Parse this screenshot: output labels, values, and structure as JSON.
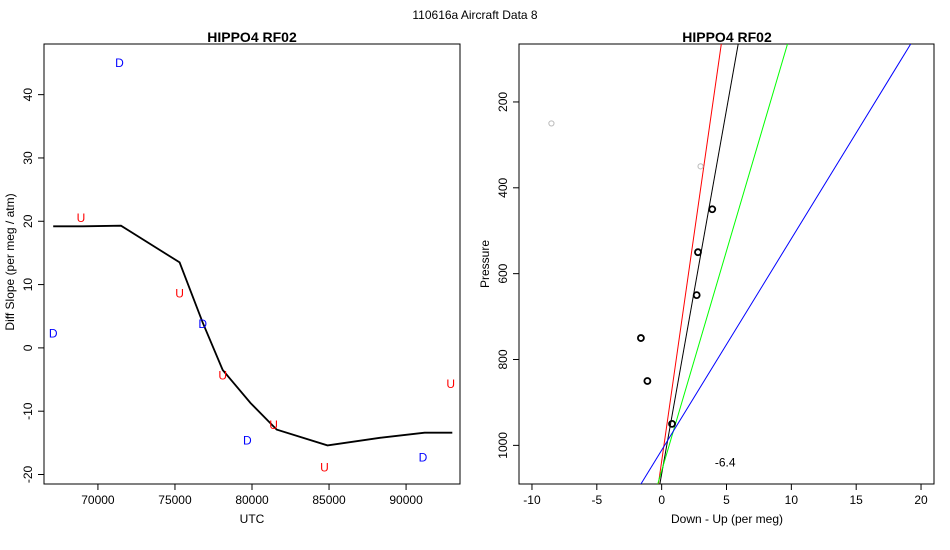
{
  "figure": {
    "suptitle": "110616a   Aircraft Data 8"
  },
  "chart_data": [
    {
      "type": "scatter",
      "title": "HIPPO4 RF02",
      "xlabel": "UTC",
      "ylabel": "Diff Slope (per meg / atm)",
      "xlim": [
        66500,
        93500
      ],
      "ylim": [
        -21.5,
        48
      ],
      "xticks": [
        70000,
        75000,
        80000,
        85000,
        90000
      ],
      "yticks": [
        -20,
        -10,
        0,
        10,
        20,
        30,
        40
      ],
      "grid": false,
      "points": [
        {
          "label": "D",
          "x": 71400,
          "y": 45,
          "color": "#0000ff"
        },
        {
          "label": "U",
          "x": 68900,
          "y": 20.5,
          "color": "#ff0000"
        },
        {
          "label": "D",
          "x": 67100,
          "y": 2.3,
          "color": "#0000ff"
        },
        {
          "label": "U",
          "x": 75300,
          "y": 8.6,
          "color": "#ff0000"
        },
        {
          "label": "D",
          "x": 76800,
          "y": 3.8,
          "color": "#0000ff"
        },
        {
          "label": "U",
          "x": 78100,
          "y": -4.4,
          "color": "#ff0000"
        },
        {
          "label": "D",
          "x": 79700,
          "y": -14.6,
          "color": "#0000ff"
        },
        {
          "label": "U",
          "x": 81400,
          "y": -12.2,
          "color": "#ff0000"
        },
        {
          "label": "U",
          "x": 84700,
          "y": -18.9,
          "color": "#ff0000"
        },
        {
          "label": "D",
          "x": 91100,
          "y": -17.3,
          "color": "#0000ff"
        },
        {
          "label": "U",
          "x": 92900,
          "y": -5.7,
          "color": "#ff0000"
        }
      ],
      "lines": [
        {
          "color": "#000000",
          "points": [
            [
              67100,
              19.2
            ],
            [
              69000,
              19.2
            ],
            [
              71500,
              19.3
            ],
            [
              75300,
              13.5
            ],
            [
              76800,
              4
            ],
            [
              78100,
              -3.5
            ],
            [
              79900,
              -8.7
            ],
            [
              81600,
              -12.9
            ],
            [
              84900,
              -15.4
            ],
            [
              88300,
              -14.2
            ],
            [
              91200,
              -13.4
            ],
            [
              93000,
              -13.4
            ]
          ]
        }
      ]
    },
    {
      "type": "scatter",
      "title": "HIPPO4 RF02",
      "xlabel": "Down - Up (per meg)",
      "ylabel": "Pressure",
      "xlim": [
        -11,
        21
      ],
      "ylim": [
        1090,
        65
      ],
      "y_reversed": true,
      "xticks": [
        -10,
        -5,
        0,
        5,
        10,
        15,
        20
      ],
      "yticks": [
        200,
        400,
        600,
        800,
        1000
      ],
      "grid": false,
      "annotations": [
        {
          "text": "-6.4",
          "x": 4.9,
          "y": 1040
        }
      ],
      "points": [
        {
          "x": -8.5,
          "y": 250,
          "color": "#bbbbbb",
          "size": "small"
        },
        {
          "x": 3.0,
          "y": 350,
          "color": "#bbbbbb",
          "size": "small"
        },
        {
          "x": 3.9,
          "y": 450,
          "color": "#000000",
          "size": "normal"
        },
        {
          "x": 2.8,
          "y": 550,
          "color": "#000000",
          "size": "normal"
        },
        {
          "x": 2.7,
          "y": 650,
          "color": "#000000",
          "size": "normal"
        },
        {
          "x": -1.6,
          "y": 750,
          "color": "#000000",
          "size": "normal"
        },
        {
          "x": -1.1,
          "y": 850,
          "color": "#000000",
          "size": "normal"
        },
        {
          "x": 0.8,
          "y": 950,
          "color": "#000000",
          "size": "normal"
        }
      ],
      "lines": [
        {
          "color": "#ff0000",
          "points": [
            [
              -0.3,
              1100
            ],
            [
              4.6,
              65
            ]
          ]
        },
        {
          "color": "#000000",
          "points": [
            [
              -0.2,
              1100
            ],
            [
              5.9,
              65
            ]
          ]
        },
        {
          "color": "#00ff00",
          "points": [
            [
              -0.4,
              1100
            ],
            [
              9.7,
              65
            ]
          ]
        },
        {
          "color": "#0000ff",
          "points": [
            [
              -1.8,
              1100
            ],
            [
              19.2,
              65
            ]
          ]
        }
      ]
    }
  ]
}
